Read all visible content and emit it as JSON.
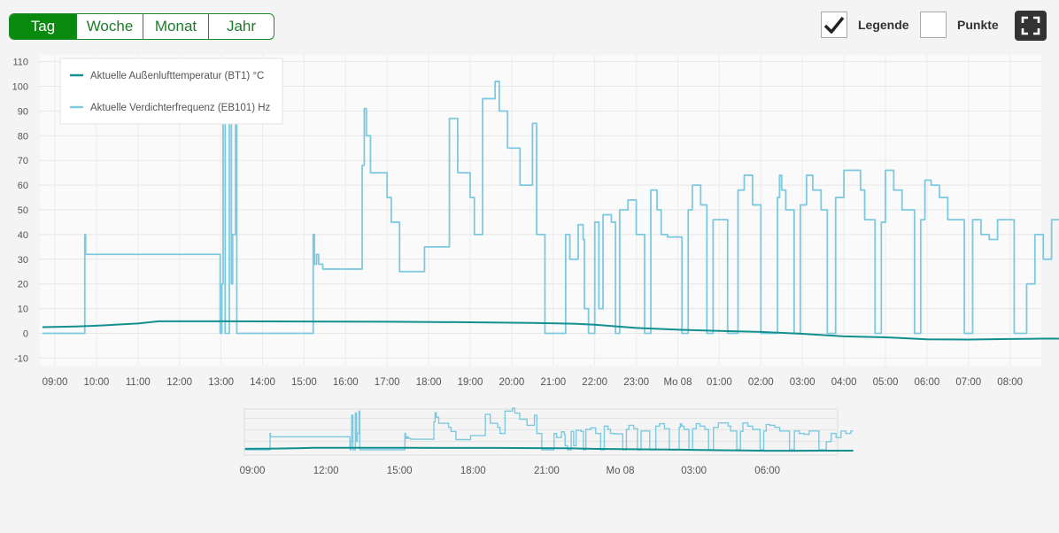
{
  "tabs": [
    "Tag",
    "Woche",
    "Monat",
    "Jahr"
  ],
  "active_tab": 0,
  "options": {
    "legend_label": "Legende",
    "legend_checked": true,
    "points_label": "Punkte",
    "points_checked": false
  },
  "icons": {
    "fullscreen": "fullscreen-icon",
    "check": "check-icon"
  },
  "colors": {
    "active_tab_bg": "#078a0e",
    "series_temperature": "#148f8f",
    "series_frequency": "#7dcae0"
  },
  "chart_data": {
    "type": "line",
    "title": "",
    "xlabel": "",
    "ylabel": "",
    "ylim": [
      -10,
      110
    ],
    "yticks": [
      "110",
      "100",
      "90",
      "80",
      "70",
      "60",
      "50",
      "40",
      "30",
      "20",
      "10",
      "0",
      "-10"
    ],
    "grid": true,
    "legend_position": "top-left",
    "x_tick_labels": [
      "09:00",
      "10:00",
      "11:00",
      "12:00",
      "13:00",
      "14:00",
      "15:00",
      "16:00",
      "17:00",
      "18:00",
      "19:00",
      "20:00",
      "21:00",
      "22:00",
      "23:00",
      "Mo 08",
      "01:00",
      "02:00",
      "03:00",
      "04:00",
      "05:00",
      "06:00",
      "07:00",
      "08:00"
    ],
    "x_unit": "hours since 09:00",
    "series": [
      {
        "name": "Aktuelle Außenlufttemperatur (BT1) °C",
        "x": [
          -0.3,
          0.5,
          1.0,
          2.0,
          2.5,
          4.0,
          6.0,
          8.0,
          10.0,
          11.5,
          12.5,
          13.0,
          14.0,
          15.0,
          16.0,
          17.0,
          18.0,
          19.0,
          20.0,
          21.0,
          22.0,
          23.0,
          24.0,
          24.5
        ],
        "values": [
          2.5,
          2.8,
          3.1,
          4.0,
          4.9,
          4.9,
          4.8,
          4.7,
          4.5,
          4.2,
          3.9,
          3.5,
          2.2,
          1.5,
          1.0,
          0.6,
          -0.2,
          -1.2,
          -1.6,
          -2.4,
          -2.5,
          -2.3,
          -2.1,
          -2.2
        ]
      },
      {
        "name": "Aktuelle Verdichterfrequenz (EB101) Hz",
        "x": [
          -0.3,
          0.7,
          0.72,
          0.74,
          0.8,
          3.9,
          3.95,
          3.98,
          4.02,
          4.05,
          4.1,
          4.2,
          4.25,
          4.28,
          4.35,
          4.38,
          4.4,
          6.2,
          6.22,
          6.25,
          6.3,
          6.35,
          6.45,
          6.55,
          6.6,
          7.35,
          7.4,
          7.45,
          7.5,
          7.6,
          8.0,
          8.1,
          8.3,
          8.9,
          9.1,
          9.5,
          9.7,
          10.0,
          10.1,
          10.3,
          10.6,
          10.7,
          10.9,
          11.2,
          11.5,
          11.6,
          11.8,
          12.0,
          12.2,
          12.3,
          12.4,
          12.6,
          12.7,
          12.72,
          12.75,
          12.85,
          13.0,
          13.1,
          13.2,
          13.4,
          13.5,
          13.6,
          13.8,
          14.0,
          14.2,
          14.35,
          14.5,
          14.6,
          14.75,
          14.9,
          15.1,
          15.25,
          15.35,
          15.55,
          15.7,
          15.85,
          16.0,
          16.2,
          16.45,
          16.6,
          16.8,
          17.0,
          17.4,
          17.45,
          17.5,
          17.6,
          17.8,
          17.95,
          18.1,
          18.25,
          18.45,
          18.6,
          18.8,
          19.0,
          19.4,
          19.5,
          19.6,
          19.75,
          19.9,
          20.0,
          20.2,
          20.4,
          20.7,
          20.85,
          20.95,
          21.1,
          21.3,
          21.5,
          21.7,
          21.9,
          22.1,
          22.3,
          22.5,
          22.7,
          23.0,
          23.1,
          23.2,
          23.4,
          23.6,
          23.8,
          24.0,
          24.2,
          24.4,
          24.5
        ],
        "values": [
          0,
          0,
          40,
          32,
          32,
          32,
          32,
          0,
          20,
          85,
          0,
          90,
          20,
          40,
          95,
          0,
          0,
          0,
          40,
          28,
          32,
          28,
          26,
          26,
          26,
          26,
          68,
          91,
          80,
          65,
          55,
          45,
          25,
          35,
          35,
          87,
          65,
          55,
          40,
          95,
          102,
          90,
          75,
          60,
          85,
          40,
          0,
          0,
          0,
          40,
          30,
          44,
          44,
          38,
          10,
          0,
          45,
          10,
          48,
          45,
          0,
          50,
          54,
          40,
          0,
          58,
          50,
          40,
          39,
          39,
          0,
          50,
          60,
          52,
          0,
          46,
          46,
          0,
          58,
          64,
          52,
          0,
          55,
          64,
          58,
          50,
          0,
          52,
          64,
          58,
          50,
          0,
          55,
          66,
          58,
          46,
          46,
          0,
          45,
          66,
          58,
          50,
          0,
          46,
          62,
          60,
          55,
          46,
          46,
          0,
          46,
          40,
          38,
          46,
          46,
          0,
          0,
          20,
          40,
          30,
          46,
          40,
          46,
          46
        ]
      }
    ]
  },
  "navigator": {
    "tick_labels": [
      "09:00",
      "12:00",
      "15:00",
      "18:00",
      "21:00",
      "Mo 08",
      "03:00",
      "06:00"
    ]
  }
}
